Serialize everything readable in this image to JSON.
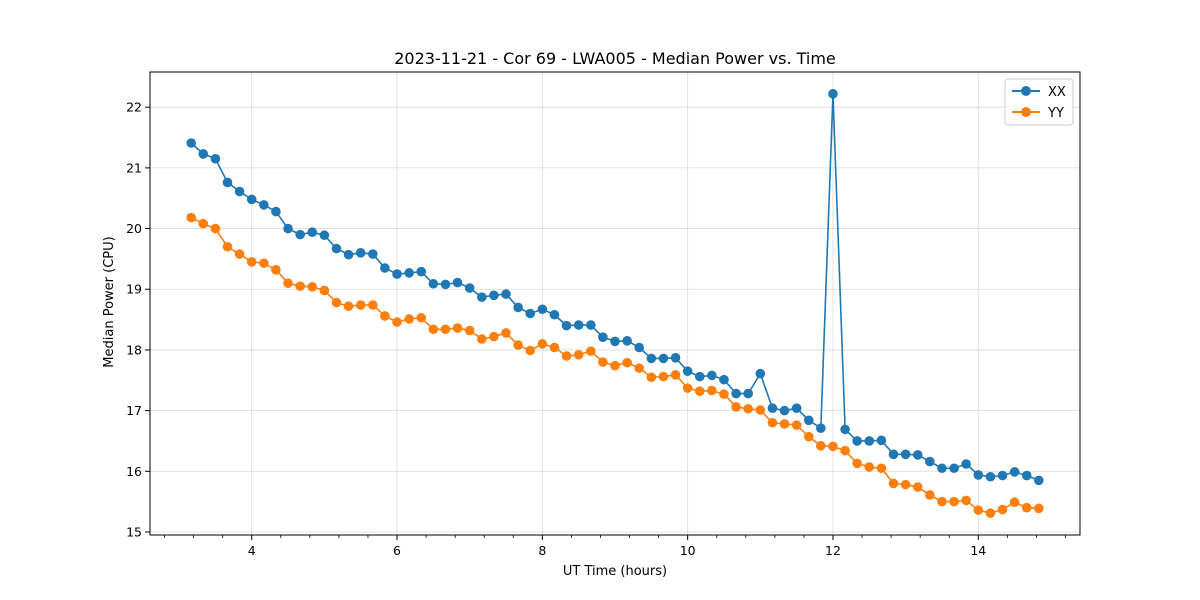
{
  "chart_data": {
    "type": "line",
    "title": "2023-11-21 - Cor 69 - LWA005 - Median Power vs. Time",
    "xlabel": "UT Time (hours)",
    "ylabel": "Median Power (CPU)",
    "xlim": [
      2.6,
      15.4
    ],
    "ylim": [
      14.95,
      22.58
    ],
    "xticks": [
      4,
      6,
      8,
      10,
      12,
      14
    ],
    "xtick_labels": [
      "4",
      "6",
      "8",
      "10",
      "12",
      "14"
    ],
    "x_minor_step": 0.4,
    "yticks": [
      15,
      16,
      17,
      18,
      19,
      20,
      21,
      22
    ],
    "ytick_labels": [
      "15",
      "16",
      "17",
      "18",
      "19",
      "20",
      "21",
      "22"
    ],
    "grid": true,
    "legend_position": "top-right",
    "series": [
      {
        "name": "XX",
        "color": "#1f77b4",
        "x": [
          3.167,
          3.333,
          3.5,
          3.667,
          3.833,
          4.0,
          4.167,
          4.333,
          4.5,
          4.667,
          4.833,
          5.0,
          5.167,
          5.333,
          5.5,
          5.667,
          5.833,
          6.0,
          6.167,
          6.333,
          6.5,
          6.667,
          6.833,
          7.0,
          7.167,
          7.333,
          7.5,
          7.667,
          7.833,
          8.0,
          8.167,
          8.333,
          8.5,
          8.667,
          8.833,
          9.0,
          9.167,
          9.333,
          9.5,
          9.667,
          9.833,
          10.0,
          10.167,
          10.333,
          10.5,
          10.667,
          10.833,
          11.0,
          11.167,
          11.333,
          11.5,
          11.667,
          11.833,
          12.0,
          12.167,
          12.333,
          12.5,
          12.667,
          12.833,
          13.0,
          13.167,
          13.333,
          13.5,
          13.667,
          13.833,
          14.0,
          14.167,
          14.333,
          14.5,
          14.667,
          14.833
        ],
        "y": [
          21.41,
          21.23,
          21.15,
          20.76,
          20.61,
          20.48,
          20.39,
          20.28,
          20.0,
          19.9,
          19.94,
          19.89,
          19.67,
          19.57,
          19.6,
          19.58,
          19.35,
          19.25,
          19.27,
          19.29,
          19.09,
          19.08,
          19.11,
          19.02,
          18.87,
          18.9,
          18.92,
          18.7,
          18.6,
          18.67,
          18.58,
          18.4,
          18.41,
          18.41,
          18.21,
          18.14,
          18.15,
          18.04,
          17.86,
          17.86,
          17.87,
          17.65,
          17.56,
          17.58,
          17.51,
          17.28,
          17.28,
          17.61,
          17.04,
          17.0,
          17.04,
          16.84,
          16.71,
          22.22,
          16.69,
          16.5,
          16.5,
          16.51,
          16.28,
          16.28,
          16.27,
          16.16,
          16.05,
          16.05,
          16.12,
          15.94,
          15.91,
          15.93,
          15.99,
          15.93,
          15.85
        ]
      },
      {
        "name": "YY",
        "color": "#ff7f0e",
        "x": [
          3.167,
          3.333,
          3.5,
          3.667,
          3.833,
          4.0,
          4.167,
          4.333,
          4.5,
          4.667,
          4.833,
          5.0,
          5.167,
          5.333,
          5.5,
          5.667,
          5.833,
          6.0,
          6.167,
          6.333,
          6.5,
          6.667,
          6.833,
          7.0,
          7.167,
          7.333,
          7.5,
          7.667,
          7.833,
          8.0,
          8.167,
          8.333,
          8.5,
          8.667,
          8.833,
          9.0,
          9.167,
          9.333,
          9.5,
          9.667,
          9.833,
          10.0,
          10.167,
          10.333,
          10.5,
          10.667,
          10.833,
          11.0,
          11.167,
          11.333,
          11.5,
          11.667,
          11.833,
          12.0,
          12.167,
          12.333,
          12.5,
          12.667,
          12.833,
          13.0,
          13.167,
          13.333,
          13.5,
          13.667,
          13.833,
          14.0,
          14.167,
          14.333,
          14.5,
          14.667,
          14.833
        ],
        "y": [
          20.18,
          20.08,
          20.0,
          19.7,
          19.58,
          19.45,
          19.43,
          19.32,
          19.1,
          19.05,
          19.04,
          18.98,
          18.78,
          18.72,
          18.74,
          18.74,
          18.56,
          18.46,
          18.51,
          18.53,
          18.34,
          18.34,
          18.36,
          18.32,
          18.18,
          18.22,
          18.28,
          18.08,
          17.99,
          18.1,
          18.04,
          17.9,
          17.92,
          17.98,
          17.8,
          17.74,
          17.79,
          17.7,
          17.55,
          17.56,
          17.59,
          17.37,
          17.32,
          17.33,
          17.27,
          17.06,
          17.03,
          17.01,
          16.8,
          16.78,
          16.76,
          16.57,
          16.42,
          16.41,
          16.34,
          16.13,
          16.07,
          16.05,
          15.8,
          15.78,
          15.74,
          15.61,
          15.5,
          15.5,
          15.52,
          15.36,
          15.31,
          15.37,
          15.49,
          15.4,
          15.39
        ]
      }
    ]
  }
}
